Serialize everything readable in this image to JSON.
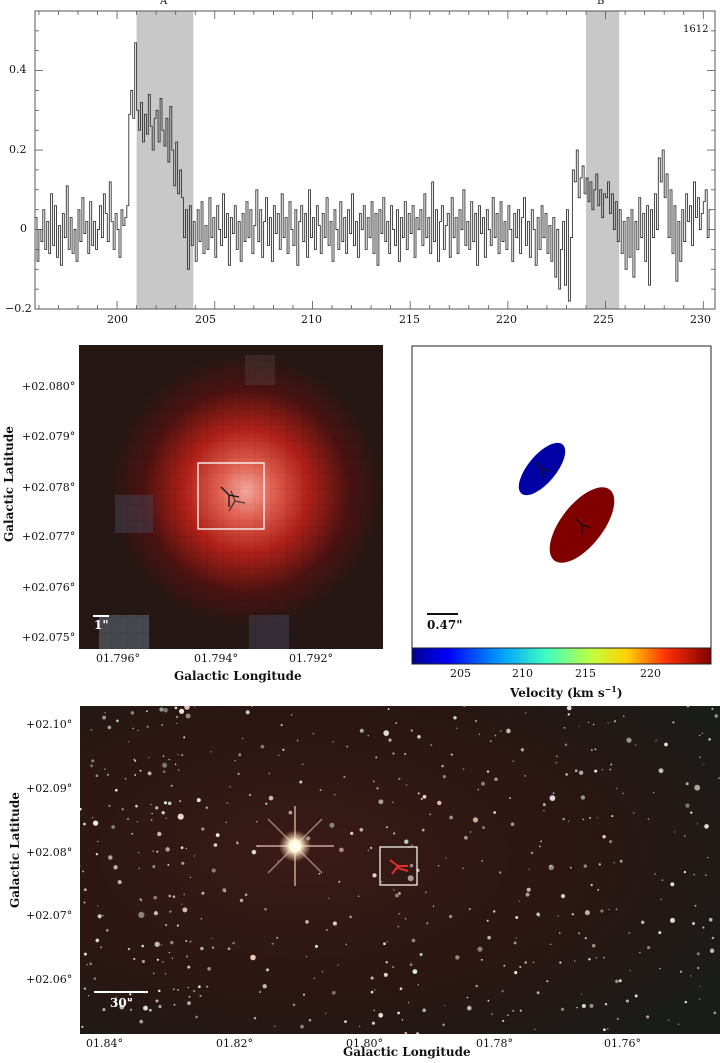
{
  "spectrum": {
    "tag": "1612",
    "region_labels": [
      "A",
      "B"
    ],
    "x_ticks": [
      200,
      205,
      210,
      215,
      220,
      225,
      230
    ],
    "y_ticks": [
      "0.4",
      "0.2",
      "0",
      "−0.2"
    ]
  },
  "zoom_image": {
    "ylabel": "Galactic Latitude",
    "xlabel": "Galactic Longitude",
    "y_ticks": [
      "+02.080°",
      "+02.079°",
      "+02.078°",
      "+02.077°",
      "+02.076°",
      "+02.075°"
    ],
    "x_ticks": [
      "01.796°",
      "01.794°",
      "01.792°"
    ],
    "scale_bar": "1\""
  },
  "velocity_map": {
    "scale_bar": "0.47\"",
    "colorbar_label": "Velocity (km s",
    "colorbar_label_sup": "−1",
    "colorbar_label_close": ")",
    "colorbar_ticks": [
      "205",
      "210",
      "215",
      "220"
    ]
  },
  "field_image": {
    "ylabel": "Galactic Latitude",
    "xlabel": "Galactic Longitude",
    "y_ticks": [
      "+02.10°",
      "+02.09°",
      "+02.08°",
      "+02.07°",
      "+02.06°"
    ],
    "x_ticks": [
      "01.84°",
      "01.82°",
      "01.80°",
      "01.78°",
      "01.76°"
    ],
    "scale_bar": "30\""
  },
  "chart_data": [
    {
      "type": "line",
      "subtype": "step",
      "xlim": [
        195.8,
        230.6
      ],
      "ylim": [
        -0.2,
        0.55
      ],
      "shaded_regions": [
        {
          "label": "A",
          "x": [
            201.0,
            203.9
          ]
        },
        {
          "label": "B",
          "x": [
            224.0,
            225.7
          ]
        }
      ],
      "x_start": 195.8,
      "x_step": 0.1,
      "y": [
        0.03,
        -0.08,
        0.0,
        -0.03,
        0.05,
        -0.05,
        0.02,
        -0.06,
        0.09,
        -0.04,
        0.06,
        -0.07,
        0.01,
        -0.09,
        0.04,
        -0.02,
        0.11,
        -0.05,
        0.03,
        -0.06,
        0.0,
        -0.08,
        0.05,
        -0.03,
        0.08,
        -0.01,
        0.02,
        -0.06,
        0.07,
        -0.04,
        0.02,
        -0.05,
        0.0,
        0.06,
        -0.02,
        0.09,
        0.04,
        -0.03,
        0.12,
        0.02,
        -0.05,
        0.04,
        0.0,
        -0.07,
        0.05,
        0.01,
        0.03,
        0.06,
        0.29,
        0.35,
        0.28,
        0.47,
        0.3,
        0.25,
        0.32,
        0.22,
        0.29,
        0.24,
        0.34,
        0.26,
        0.2,
        0.28,
        0.3,
        0.22,
        0.33,
        0.25,
        0.21,
        0.28,
        0.17,
        0.31,
        0.2,
        0.11,
        0.22,
        0.09,
        0.15,
        0.08,
        -0.02,
        0.05,
        -0.1,
        0.06,
        -0.04,
        0.02,
        -0.08,
        0.05,
        -0.03,
        0.07,
        -0.06,
        0.01,
        -0.05,
        0.08,
        -0.02,
        0.03,
        -0.07,
        0.06,
        0.0,
        -0.04,
        0.09,
        -0.02,
        0.04,
        -0.09,
        0.03,
        -0.01,
        0.06,
        -0.05,
        0.02,
        -0.08,
        0.04,
        -0.03,
        0.07,
        -0.02,
        0.05,
        -0.06,
        0.01,
        0.1,
        -0.03,
        0.05,
        -0.07,
        0.02,
        0.08,
        -0.04,
        0.03,
        -0.08,
        0.06,
        -0.01,
        0.04,
        -0.05,
        0.09,
        -0.02,
        0.03,
        -0.06,
        0.07,
        0.0,
        -0.04,
        0.05,
        -0.09,
        0.02,
        0.06,
        -0.03,
        0.04,
        -0.07,
        0.1,
        -0.02,
        0.03,
        -0.05,
        0.06,
        0.01,
        -0.06,
        0.04,
        -0.02,
        0.08,
        -0.04,
        0.02,
        -0.08,
        0.05,
        0.0,
        -0.05,
        0.07,
        -0.03,
        0.03,
        -0.06,
        0.05,
        -0.01,
        0.09,
        -0.04,
        0.02,
        -0.07,
        0.04,
        0.0,
        0.06,
        -0.05,
        0.03,
        -0.02,
        0.07,
        -0.06,
        0.04,
        -0.09,
        0.05,
        -0.01,
        0.08,
        -0.03,
        0.02,
        -0.06,
        0.06,
        0.0,
        -0.04,
        0.05,
        -0.08,
        0.03,
        -0.02,
        0.07,
        -0.05,
        0.04,
        -0.01,
        0.06,
        -0.07,
        0.03,
        0.0,
        0.05,
        -0.04,
        0.09,
        -0.02,
        0.03,
        -0.06,
        0.12,
        -0.03,
        0.05,
        -0.08,
        0.02,
        0.06,
        -0.05,
        0.01,
        0.04,
        -0.07,
        0.08,
        -0.02,
        0.03,
        -0.06,
        0.05,
        0.0,
        0.1,
        -0.04,
        0.02,
        -0.05,
        0.07,
        -0.03,
        0.04,
        -0.09,
        0.06,
        -0.01,
        0.03,
        -0.07,
        0.05,
        0.0,
        -0.04,
        0.08,
        -0.02,
        0.04,
        -0.06,
        0.07,
        -0.03,
        0.02,
        -0.05,
        0.06,
        0.0,
        -0.08,
        0.04,
        -0.02,
        0.05,
        -0.06,
        0.03,
        0.08,
        -0.04,
        0.02,
        -0.07,
        0.05,
        0.0,
        -0.09,
        0.03,
        -0.05,
        0.06,
        -0.02,
        0.04,
        -0.06,
        0.01,
        -0.08,
        0.03,
        -0.12,
        0.0,
        -0.15,
        -0.05,
        0.02,
        -0.14,
        0.05,
        -0.18,
        -0.02,
        0.15,
        0.12,
        0.2,
        0.08,
        0.13,
        0.16,
        0.09,
        0.13,
        0.07,
        0.12,
        0.05,
        0.1,
        0.14,
        0.06,
        0.1,
        0.03,
        0.09,
        0.08,
        0.12,
        0.04,
        0.09,
        0.0,
        0.07,
        -0.03,
        0.05,
        -0.06,
        0.02,
        -0.1,
        0.03,
        -0.07,
        0.05,
        -0.12,
        0.02,
        -0.05,
        0.08,
        -0.02,
        0.04,
        -0.08,
        0.06,
        -0.14,
        0.05,
        -0.02,
        0.09,
        0.0,
        0.18,
        0.12,
        0.2,
        0.08,
        0.14,
        -0.02,
        0.1,
        -0.06,
        0.06,
        -0.13,
        0.02,
        -0.08,
        0.05,
        -0.03,
        0.09,
        0.02,
        0.06,
        -0.04,
        0.12,
        0.03,
        0.08,
        0.0,
        0.04,
        0.07,
        0.1,
        -0.02,
        0.05
      ]
    },
    {
      "type": "scatter",
      "subtype": "velocity_ellipses",
      "colorbar_range": [
        201.5,
        224.0
      ],
      "points": [
        {
          "velocity": 202.0
        },
        {
          "velocity": 224.0
        }
      ]
    }
  ]
}
